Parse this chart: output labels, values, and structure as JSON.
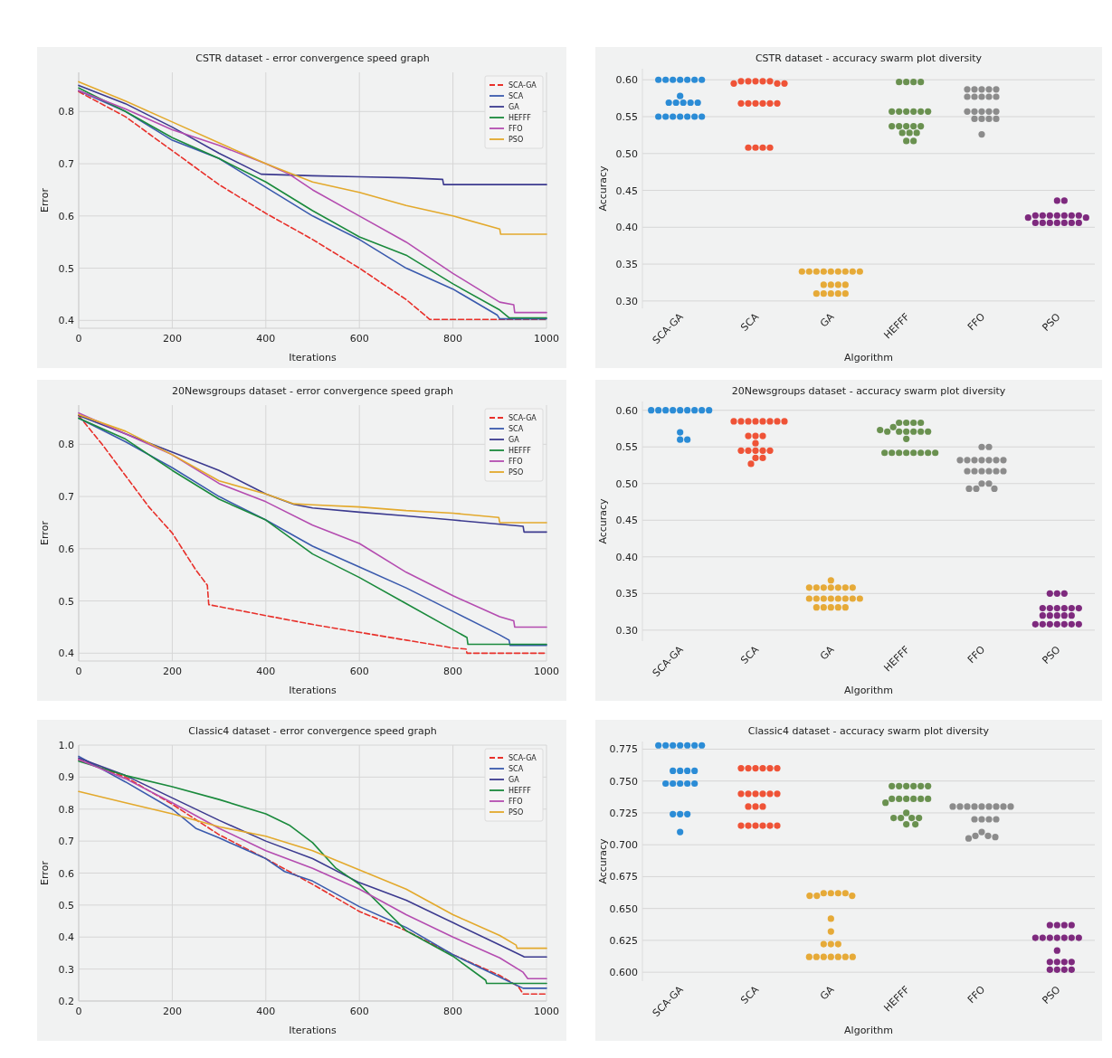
{
  "chart_data": [
    {
      "type": "line",
      "title": "CSTR dataset - error convergence speed graph",
      "xlabel": "Iterations",
      "ylabel": "Error",
      "xlim": [
        0,
        1000
      ],
      "ylim": [
        0.385,
        0.875
      ],
      "xticks": [
        0,
        200,
        400,
        600,
        800,
        1000
      ],
      "yticks": [
        0.4,
        0.5,
        0.6,
        0.7,
        0.8
      ],
      "grid": true,
      "legend": "top right",
      "series": [
        {
          "name": "SCA-GA",
          "color": "#e8302a",
          "line_style": "dashed",
          "x": [
            0,
            100,
            200,
            300,
            400,
            500,
            600,
            700,
            740,
            750,
            1000
          ],
          "values": [
            0.838,
            0.79,
            0.725,
            0.66,
            0.605,
            0.555,
            0.5,
            0.44,
            0.41,
            0.402,
            0.402
          ]
        },
        {
          "name": "SCA",
          "color": "#3a5aad",
          "line_style": "solid",
          "x": [
            0,
            100,
            200,
            300,
            400,
            500,
            600,
            700,
            800,
            895,
            900,
            1000
          ],
          "values": [
            0.84,
            0.8,
            0.745,
            0.71,
            0.655,
            0.6,
            0.555,
            0.5,
            0.46,
            0.41,
            0.403,
            0.403
          ]
        },
        {
          "name": "GA",
          "color": "#3c3a8f",
          "line_style": "solid",
          "x": [
            0,
            100,
            200,
            300,
            390,
            500,
            600,
            700,
            778,
            780,
            1000
          ],
          "values": [
            0.85,
            0.815,
            0.77,
            0.72,
            0.68,
            0.677,
            0.675,
            0.673,
            0.67,
            0.66,
            0.66
          ]
        },
        {
          "name": "HEFFF",
          "color": "#1a8a3c",
          "line_style": "solid",
          "x": [
            0,
            100,
            200,
            300,
            400,
            500,
            600,
            700,
            800,
            900,
            920,
            1000
          ],
          "values": [
            0.845,
            0.8,
            0.75,
            0.71,
            0.665,
            0.61,
            0.56,
            0.525,
            0.47,
            0.42,
            0.405,
            0.405
          ]
        },
        {
          "name": "FFO",
          "color": "#b44cb0",
          "line_style": "solid",
          "x": [
            0,
            100,
            200,
            300,
            400,
            450,
            500,
            600,
            700,
            800,
            900,
            930,
            932,
            1000
          ],
          "values": [
            0.84,
            0.805,
            0.765,
            0.735,
            0.7,
            0.68,
            0.65,
            0.6,
            0.55,
            0.49,
            0.435,
            0.43,
            0.415,
            0.415
          ]
        },
        {
          "name": "PSO",
          "color": "#e3a92c",
          "line_style": "solid",
          "x": [
            0,
            100,
            200,
            300,
            400,
            500,
            600,
            700,
            800,
            900,
            902,
            1000
          ],
          "values": [
            0.857,
            0.82,
            0.78,
            0.74,
            0.7,
            0.665,
            0.645,
            0.62,
            0.6,
            0.575,
            0.565,
            0.565
          ]
        }
      ]
    },
    {
      "type": "scatter",
      "title": "CSTR dataset - accuracy swarm plot diversity",
      "xlabel": "Algorithm",
      "ylabel": "Accuracy",
      "categories": [
        "SCA-GA",
        "SCA",
        "GA",
        "HEFFF",
        "FFO",
        "PSO"
      ],
      "ylim": [
        0.29,
        0.615
      ],
      "yticks": [
        {
          "value": 0.3,
          "label": "0.30"
        },
        {
          "value": 0.35,
          "label": "0.35"
        },
        {
          "value": 0.4,
          "label": "0.40"
        },
        {
          "value": 0.45,
          "label": "0.45"
        },
        {
          "value": 0.5,
          "label": "0.50"
        },
        {
          "value": 0.55,
          "label": "0.55"
        },
        {
          "value": 0.6,
          "label": "0.60"
        }
      ],
      "grid": "y",
      "marker": "circle",
      "series": [
        {
          "color": "#2b8cd6",
          "x": [
            "SCA-GA",
            "SCA-GA",
            "SCA-GA",
            "SCA-GA",
            "SCA-GA",
            "SCA-GA",
            "SCA-GA",
            "SCA-GA",
            "SCA-GA",
            "SCA-GA",
            "SCA-GA",
            "SCA-GA",
            "SCA-GA",
            "SCA-GA",
            "SCA-GA",
            "SCA-GA",
            "SCA-GA",
            "SCA-GA",
            "SCA-GA",
            "SCA-GA"
          ],
          "values": [
            0.6,
            0.6,
            0.6,
            0.6,
            0.6,
            0.6,
            0.6,
            0.578,
            0.569,
            0.569,
            0.569,
            0.569,
            0.569,
            0.55,
            0.55,
            0.55,
            0.55,
            0.55,
            0.55,
            0.55
          ]
        },
        {
          "color": "#ef5337",
          "x": [
            "SCA",
            "SCA",
            "SCA",
            "SCA",
            "SCA",
            "SCA",
            "SCA",
            "SCA",
            "SCA",
            "SCA",
            "SCA",
            "SCA",
            "SCA",
            "SCA",
            "SCA",
            "SCA",
            "SCA",
            "SCA"
          ],
          "values": [
            0.598,
            0.598,
            0.598,
            0.598,
            0.598,
            0.595,
            0.595,
            0.595,
            0.568,
            0.568,
            0.568,
            0.568,
            0.568,
            0.568,
            0.508,
            0.508,
            0.508,
            0.508
          ]
        },
        {
          "color": "#e6aa38",
          "x": [
            "GA",
            "GA",
            "GA",
            "GA",
            "GA",
            "GA",
            "GA",
            "GA",
            "GA",
            "GA",
            "GA",
            "GA",
            "GA",
            "GA",
            "GA",
            "GA",
            "GA",
            "GA"
          ],
          "values": [
            0.34,
            0.34,
            0.34,
            0.34,
            0.34,
            0.34,
            0.34,
            0.34,
            0.34,
            0.322,
            0.322,
            0.322,
            0.322,
            0.31,
            0.31,
            0.31,
            0.31,
            0.31
          ]
        },
        {
          "color": "#6a9150",
          "x": [
            "HEFFF",
            "HEFFF",
            "HEFFF",
            "HEFFF",
            "HEFFF",
            "HEFFF",
            "HEFFF",
            "HEFFF",
            "HEFFF",
            "HEFFF",
            "HEFFF",
            "HEFFF",
            "HEFFF",
            "HEFFF",
            "HEFFF",
            "HEFFF",
            "HEFFF",
            "HEFFF",
            "HEFFF",
            "HEFFF"
          ],
          "values": [
            0.597,
            0.597,
            0.597,
            0.597,
            0.557,
            0.557,
            0.557,
            0.557,
            0.557,
            0.557,
            0.537,
            0.537,
            0.537,
            0.537,
            0.537,
            0.528,
            0.528,
            0.528,
            0.517,
            0.517
          ]
        },
        {
          "color": "#8c8c8c",
          "x": [
            "FFO",
            "FFO",
            "FFO",
            "FFO",
            "FFO",
            "FFO",
            "FFO",
            "FFO",
            "FFO",
            "FFO",
            "FFO",
            "FFO",
            "FFO",
            "FFO",
            "FFO",
            "FFO",
            "FFO",
            "FFO",
            "FFO",
            "FFO"
          ],
          "values": [
            0.587,
            0.587,
            0.587,
            0.587,
            0.587,
            0.577,
            0.577,
            0.577,
            0.577,
            0.577,
            0.557,
            0.557,
            0.557,
            0.557,
            0.557,
            0.547,
            0.547,
            0.547,
            0.547,
            0.526
          ]
        },
        {
          "color": "#7e2a7e",
          "x": [
            "PSO",
            "PSO",
            "PSO",
            "PSO",
            "PSO",
            "PSO",
            "PSO",
            "PSO",
            "PSO",
            "PSO",
            "PSO",
            "PSO",
            "PSO",
            "PSO",
            "PSO",
            "PSO",
            "PSO",
            "PSO"
          ],
          "values": [
            0.436,
            0.436,
            0.416,
            0.416,
            0.416,
            0.416,
            0.416,
            0.416,
            0.416,
            0.413,
            0.413,
            0.406,
            0.406,
            0.406,
            0.406,
            0.406,
            0.406,
            0.406
          ]
        }
      ]
    },
    {
      "type": "line",
      "title": "20Newsgroups dataset - error convergence speed graph",
      "xlabel": "Iterations",
      "ylabel": "Error",
      "xlim": [
        0,
        1000
      ],
      "ylim": [
        0.385,
        0.875
      ],
      "xticks": [
        0,
        200,
        400,
        600,
        800,
        1000
      ],
      "yticks": [
        0.4,
        0.5,
        0.6,
        0.7,
        0.8
      ],
      "grid": true,
      "legend": "top right",
      "series": [
        {
          "name": "SCA-GA",
          "color": "#e8302a",
          "line_style": "dashed",
          "x": [
            0,
            50,
            100,
            150,
            200,
            250,
            275,
            278,
            400,
            500,
            600,
            700,
            800,
            828,
            830,
            1000
          ],
          "values": [
            0.855,
            0.8,
            0.74,
            0.68,
            0.63,
            0.56,
            0.53,
            0.493,
            0.472,
            0.455,
            0.44,
            0.425,
            0.41,
            0.408,
            0.4,
            0.4
          ]
        },
        {
          "name": "SCA",
          "color": "#3a5aad",
          "line_style": "solid",
          "x": [
            0,
            100,
            200,
            300,
            400,
            500,
            600,
            700,
            800,
            900,
            920,
            922,
            1000
          ],
          "values": [
            0.85,
            0.805,
            0.755,
            0.7,
            0.655,
            0.605,
            0.565,
            0.525,
            0.48,
            0.435,
            0.425,
            0.415,
            0.415
          ]
        },
        {
          "name": "GA",
          "color": "#3c3a8f",
          "line_style": "solid",
          "x": [
            0,
            100,
            200,
            300,
            400,
            460,
            500,
            600,
            700,
            800,
            950,
            952,
            1000
          ],
          "values": [
            0.855,
            0.82,
            0.785,
            0.75,
            0.705,
            0.685,
            0.678,
            0.67,
            0.663,
            0.655,
            0.643,
            0.632,
            0.632
          ]
        },
        {
          "name": "HEFFF",
          "color": "#1a8a3c",
          "line_style": "solid",
          "x": [
            0,
            100,
            200,
            300,
            400,
            500,
            600,
            700,
            800,
            830,
            832,
            1000
          ],
          "values": [
            0.85,
            0.81,
            0.75,
            0.695,
            0.655,
            0.59,
            0.545,
            0.495,
            0.445,
            0.43,
            0.417,
            0.417
          ]
        },
        {
          "name": "FFO",
          "color": "#b44cb0",
          "line_style": "solid",
          "x": [
            0,
            100,
            200,
            300,
            400,
            500,
            600,
            700,
            800,
            900,
            930,
            932,
            1000
          ],
          "values": [
            0.86,
            0.82,
            0.78,
            0.725,
            0.69,
            0.645,
            0.61,
            0.555,
            0.51,
            0.47,
            0.462,
            0.45,
            0.45
          ]
        },
        {
          "name": "PSO",
          "color": "#e3a92c",
          "line_style": "solid",
          "x": [
            0,
            100,
            200,
            300,
            400,
            460,
            500,
            600,
            700,
            800,
            898,
            900,
            1000
          ],
          "values": [
            0.857,
            0.825,
            0.78,
            0.73,
            0.705,
            0.686,
            0.684,
            0.68,
            0.673,
            0.668,
            0.66,
            0.65,
            0.65
          ]
        }
      ]
    },
    {
      "type": "scatter",
      "title": "20Newsgroups dataset - accuracy swarm plot diversity",
      "xlabel": "Algorithm",
      "ylabel": "Accuracy",
      "categories": [
        "SCA-GA",
        "SCA",
        "GA",
        "HEFFF",
        "FFO",
        "PSO"
      ],
      "ylim": [
        0.285,
        0.612
      ],
      "yticks": [
        {
          "value": 0.3,
          "label": "0.30"
        },
        {
          "value": 0.35,
          "label": "0.35"
        },
        {
          "value": 0.4,
          "label": "0.40"
        },
        {
          "value": 0.45,
          "label": "0.45"
        },
        {
          "value": 0.5,
          "label": "0.50"
        },
        {
          "value": 0.55,
          "label": "0.55"
        },
        {
          "value": 0.6,
          "label": "0.60"
        }
      ],
      "grid": "y",
      "marker": "circle",
      "series": [
        {
          "color": "#2b8cd6",
          "x": [
            "SCA-GA",
            "SCA-GA",
            "SCA-GA",
            "SCA-GA",
            "SCA-GA",
            "SCA-GA",
            "SCA-GA",
            "SCA-GA",
            "SCA-GA",
            "SCA-GA",
            "SCA-GA",
            "SCA-GA"
          ],
          "values": [
            0.6,
            0.6,
            0.6,
            0.6,
            0.6,
            0.6,
            0.6,
            0.6,
            0.6,
            0.57,
            0.56,
            0.56
          ]
        },
        {
          "color": "#ef5337",
          "x": [
            "SCA",
            "SCA",
            "SCA",
            "SCA",
            "SCA",
            "SCA",
            "SCA",
            "SCA",
            "SCA",
            "SCA",
            "SCA",
            "SCA",
            "SCA",
            "SCA",
            "SCA",
            "SCA",
            "SCA",
            "SCA",
            "SCA",
            "SCA"
          ],
          "values": [
            0.585,
            0.585,
            0.585,
            0.585,
            0.585,
            0.585,
            0.585,
            0.585,
            0.565,
            0.565,
            0.565,
            0.555,
            0.545,
            0.545,
            0.545,
            0.545,
            0.545,
            0.535,
            0.535,
            0.527
          ]
        },
        {
          "color": "#e6aa38",
          "x": [
            "GA",
            "GA",
            "GA",
            "GA",
            "GA",
            "GA",
            "GA",
            "GA",
            "GA",
            "GA",
            "GA",
            "GA",
            "GA",
            "GA",
            "GA",
            "GA",
            "GA",
            "GA",
            "GA",
            "GA",
            "GA"
          ],
          "values": [
            0.368,
            0.358,
            0.358,
            0.358,
            0.358,
            0.358,
            0.358,
            0.358,
            0.343,
            0.343,
            0.343,
            0.343,
            0.343,
            0.343,
            0.343,
            0.343,
            0.331,
            0.331,
            0.331,
            0.331,
            0.331
          ]
        },
        {
          "color": "#6a9150",
          "x": [
            "HEFFF",
            "HEFFF",
            "HEFFF",
            "HEFFF",
            "HEFFF",
            "HEFFF",
            "HEFFF",
            "HEFFF",
            "HEFFF",
            "HEFFF",
            "HEFFF",
            "HEFFF",
            "HEFFF",
            "HEFFF",
            "HEFFF",
            "HEFFF",
            "HEFFF",
            "HEFFF",
            "HEFFF",
            "HEFFF",
            "HEFFF"
          ],
          "values": [
            0.583,
            0.583,
            0.583,
            0.583,
            0.577,
            0.571,
            0.571,
            0.571,
            0.571,
            0.571,
            0.571,
            0.573,
            0.561,
            0.542,
            0.542,
            0.542,
            0.542,
            0.542,
            0.542,
            0.542,
            0.542
          ]
        },
        {
          "color": "#8c8c8c",
          "x": [
            "FFO",
            "FFO",
            "FFO",
            "FFO",
            "FFO",
            "FFO",
            "FFO",
            "FFO",
            "FFO",
            "FFO",
            "FFO",
            "FFO",
            "FFO",
            "FFO",
            "FFO",
            "FFO",
            "FFO",
            "FFO",
            "FFO",
            "FFO"
          ],
          "values": [
            0.55,
            0.55,
            0.532,
            0.532,
            0.532,
            0.532,
            0.532,
            0.532,
            0.532,
            0.517,
            0.517,
            0.517,
            0.517,
            0.517,
            0.517,
            0.5,
            0.5,
            0.493,
            0.493,
            0.493
          ]
        },
        {
          "color": "#7e2a7e",
          "x": [
            "PSO",
            "PSO",
            "PSO",
            "PSO",
            "PSO",
            "PSO",
            "PSO",
            "PSO",
            "PSO",
            "PSO",
            "PSO",
            "PSO",
            "PSO",
            "PSO",
            "PSO",
            "PSO",
            "PSO",
            "PSO",
            "PSO",
            "PSO",
            "PSO"
          ],
          "values": [
            0.35,
            0.35,
            0.35,
            0.33,
            0.33,
            0.33,
            0.33,
            0.33,
            0.33,
            0.32,
            0.32,
            0.32,
            0.32,
            0.32,
            0.308,
            0.308,
            0.308,
            0.308,
            0.308,
            0.308,
            0.308
          ]
        }
      ]
    },
    {
      "type": "line",
      "title": "Classic4 dataset - error convergence speed graph",
      "xlabel": "Iterations",
      "ylabel": "Error",
      "xlim": [
        0,
        1000
      ],
      "ylim": [
        0.2,
        1.0
      ],
      "xticks": [
        0,
        200,
        400,
        600,
        800,
        1000
      ],
      "yticks": [
        0.2,
        0.3,
        0.4,
        0.5,
        0.6,
        0.7,
        0.8,
        0.9,
        {
          "value": 1,
          "label": "1.0"
        }
      ],
      "grid": true,
      "legend": "top right",
      "series": [
        {
          "name": "SCA-GA",
          "color": "#e8302a",
          "line_style": "dashed",
          "x": [
            0,
            100,
            200,
            300,
            400,
            500,
            600,
            700,
            800,
            900,
            940,
            950,
            1000
          ],
          "values": [
            0.955,
            0.9,
            0.815,
            0.72,
            0.645,
            0.565,
            0.48,
            0.42,
            0.345,
            0.28,
            0.245,
            0.222,
            0.222
          ]
        },
        {
          "name": "SCA",
          "color": "#3a5aad",
          "line_style": "solid",
          "x": [
            0,
            100,
            200,
            250,
            300,
            400,
            440,
            500,
            600,
            700,
            800,
            900,
            950,
            1000
          ],
          "values": [
            0.965,
            0.885,
            0.8,
            0.74,
            0.71,
            0.645,
            0.605,
            0.575,
            0.495,
            0.43,
            0.345,
            0.275,
            0.24,
            0.24
          ]
        },
        {
          "name": "GA",
          "color": "#3c3a8f",
          "line_style": "solid",
          "x": [
            0,
            100,
            200,
            300,
            400,
            500,
            600,
            700,
            800,
            900,
            950,
            952,
            1000
          ],
          "values": [
            0.96,
            0.905,
            0.835,
            0.765,
            0.7,
            0.645,
            0.57,
            0.515,
            0.445,
            0.375,
            0.34,
            0.338,
            0.338
          ]
        },
        {
          "name": "HEFFF",
          "color": "#1a8a3c",
          "line_style": "solid",
          "x": [
            0,
            100,
            200,
            300,
            400,
            450,
            500,
            550,
            600,
            700,
            800,
            870,
            872,
            1000
          ],
          "values": [
            0.95,
            0.905,
            0.87,
            0.83,
            0.785,
            0.75,
            0.695,
            0.615,
            0.565,
            0.42,
            0.34,
            0.265,
            0.255,
            0.255
          ]
        },
        {
          "name": "FFO",
          "color": "#b44cb0",
          "line_style": "solid",
          "x": [
            0,
            100,
            200,
            300,
            400,
            500,
            600,
            700,
            800,
            900,
            950,
            960,
            1000
          ],
          "values": [
            0.955,
            0.895,
            0.82,
            0.74,
            0.67,
            0.615,
            0.55,
            0.47,
            0.4,
            0.335,
            0.29,
            0.27,
            0.27
          ]
        },
        {
          "name": "PSO",
          "color": "#e3a92c",
          "line_style": "solid",
          "x": [
            0,
            100,
            200,
            300,
            400,
            500,
            600,
            700,
            800,
            900,
            935,
            937,
            1000
          ],
          "values": [
            0.855,
            0.82,
            0.785,
            0.745,
            0.715,
            0.67,
            0.61,
            0.55,
            0.47,
            0.405,
            0.375,
            0.365,
            0.365
          ]
        }
      ]
    },
    {
      "type": "scatter",
      "title": "Classic4 dataset - accuracy swarm plot diversity",
      "xlabel": "Algorithm",
      "ylabel": "Accuracy",
      "categories": [
        "SCA-GA",
        "SCA",
        "GA",
        "HEFFF",
        "FFO",
        "PSO"
      ],
      "ylim": [
        0.593,
        0.781
      ],
      "yticks": [
        {
          "value": 0.6,
          "label": "0.600"
        },
        0.625,
        {
          "value": 0.65,
          "label": "0.650"
        },
        0.675,
        {
          "value": 0.7,
          "label": "0.700"
        },
        0.725,
        {
          "value": 0.75,
          "label": "0.750"
        },
        0.775
      ],
      "grid": "y",
      "marker": "circle",
      "series": [
        {
          "color": "#2b8cd6",
          "x": [
            "SCA-GA",
            "SCA-GA",
            "SCA-GA",
            "SCA-GA",
            "SCA-GA",
            "SCA-GA",
            "SCA-GA",
            "SCA-GA",
            "SCA-GA",
            "SCA-GA",
            "SCA-GA",
            "SCA-GA",
            "SCA-GA",
            "SCA-GA",
            "SCA-GA",
            "SCA-GA",
            "SCA-GA",
            "SCA-GA",
            "SCA-GA",
            "SCA-GA"
          ],
          "values": [
            0.778,
            0.778,
            0.778,
            0.778,
            0.778,
            0.778,
            0.778,
            0.758,
            0.758,
            0.758,
            0.758,
            0.748,
            0.748,
            0.748,
            0.748,
            0.748,
            0.724,
            0.724,
            0.724,
            0.71
          ]
        },
        {
          "color": "#ef5337",
          "x": [
            "SCA",
            "SCA",
            "SCA",
            "SCA",
            "SCA",
            "SCA",
            "SCA",
            "SCA",
            "SCA",
            "SCA",
            "SCA",
            "SCA",
            "SCA",
            "SCA",
            "SCA",
            "SCA",
            "SCA",
            "SCA",
            "SCA",
            "SCA",
            "SCA"
          ],
          "values": [
            0.76,
            0.76,
            0.76,
            0.76,
            0.76,
            0.76,
            0.74,
            0.74,
            0.74,
            0.74,
            0.74,
            0.74,
            0.73,
            0.73,
            0.73,
            0.715,
            0.715,
            0.715,
            0.715,
            0.715,
            0.715
          ]
        },
        {
          "color": "#e6aa38",
          "x": [
            "GA",
            "GA",
            "GA",
            "GA",
            "GA",
            "GA",
            "GA",
            "GA",
            "GA",
            "GA",
            "GA",
            "GA",
            "GA",
            "GA",
            "GA",
            "GA",
            "GA",
            "GA",
            "GA"
          ],
          "values": [
            0.662,
            0.662,
            0.662,
            0.662,
            0.66,
            0.66,
            0.66,
            0.642,
            0.632,
            0.622,
            0.622,
            0.622,
            0.612,
            0.612,
            0.612,
            0.612,
            0.612,
            0.612,
            0.612
          ]
        },
        {
          "color": "#6a9150",
          "x": [
            "HEFFF",
            "HEFFF",
            "HEFFF",
            "HEFFF",
            "HEFFF",
            "HEFFF",
            "HEFFF",
            "HEFFF",
            "HEFFF",
            "HEFFF",
            "HEFFF",
            "HEFFF",
            "HEFFF",
            "HEFFF",
            "HEFFF",
            "HEFFF",
            "HEFFF",
            "HEFFF",
            "HEFFF",
            "HEFFF"
          ],
          "values": [
            0.746,
            0.746,
            0.746,
            0.746,
            0.746,
            0.746,
            0.736,
            0.736,
            0.736,
            0.736,
            0.736,
            0.736,
            0.733,
            0.725,
            0.721,
            0.721,
            0.721,
            0.721,
            0.716,
            0.716
          ]
        },
        {
          "color": "#8c8c8c",
          "x": [
            "FFO",
            "FFO",
            "FFO",
            "FFO",
            "FFO",
            "FFO",
            "FFO",
            "FFO",
            "FFO",
            "FFO",
            "FFO",
            "FFO",
            "FFO",
            "FFO",
            "FFO",
            "FFO",
            "FFO",
            "FFO"
          ],
          "values": [
            0.73,
            0.73,
            0.73,
            0.73,
            0.73,
            0.73,
            0.73,
            0.73,
            0.73,
            0.72,
            0.72,
            0.72,
            0.72,
            0.71,
            0.707,
            0.707,
            0.706,
            0.705
          ]
        },
        {
          "color": "#7e2a7e",
          "x": [
            "PSO",
            "PSO",
            "PSO",
            "PSO",
            "PSO",
            "PSO",
            "PSO",
            "PSO",
            "PSO",
            "PSO",
            "PSO",
            "PSO",
            "PSO",
            "PSO",
            "PSO",
            "PSO",
            "PSO",
            "PSO",
            "PSO",
            "PSO"
          ],
          "values": [
            0.637,
            0.637,
            0.637,
            0.637,
            0.627,
            0.627,
            0.627,
            0.627,
            0.627,
            0.627,
            0.627,
            0.617,
            0.608,
            0.608,
            0.608,
            0.608,
            0.602,
            0.602,
            0.602,
            0.602
          ]
        }
      ]
    }
  ]
}
